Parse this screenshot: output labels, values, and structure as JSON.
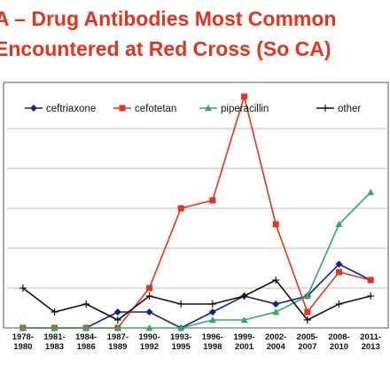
{
  "title_line1": "A – Drug Antibodies Most Common",
  "title_line2": "Encountered at Red Cross (So CA)",
  "chart_data": {
    "type": "line",
    "categories": [
      "1978-1980",
      "1981-1983",
      "1984-1986",
      "1987-1989",
      "1990-1992",
      "1993-1995",
      "1996-1998",
      "1999-2001",
      "2002-2004",
      "2005-2007",
      "2008-2010",
      "2011-2013"
    ],
    "ylim": [
      0,
      12
    ],
    "grid": true,
    "legend_position": "top",
    "series": [
      {
        "name": "ceftriaxone",
        "color": "#1a1f8c",
        "marker": "diamond",
        "values": [
          0,
          0,
          0,
          0.8,
          0.8,
          0,
          0.8,
          1.6,
          1.2,
          1.6,
          3.2,
          2.4
        ]
      },
      {
        "name": "cefotetan",
        "color": "#e8331c",
        "marker": "square",
        "values": [
          0,
          0,
          0,
          0,
          2,
          6,
          6.4,
          11.6,
          5.2,
          0.8,
          2.8,
          2.4
        ]
      },
      {
        "name": "piperacillin",
        "color": "#3aa56a",
        "marker": "triangle",
        "values": [
          0,
          0,
          0,
          0,
          0,
          0,
          0.4,
          0.4,
          0.8,
          1.6,
          5.2,
          6.8
        ]
      },
      {
        "name": "other",
        "color": "#111111",
        "marker": "cross",
        "values": [
          2,
          0.8,
          1.2,
          0.4,
          1.6,
          1.2,
          1.2,
          1.6,
          2.4,
          0.4,
          1.2,
          1.6
        ]
      }
    ]
  }
}
